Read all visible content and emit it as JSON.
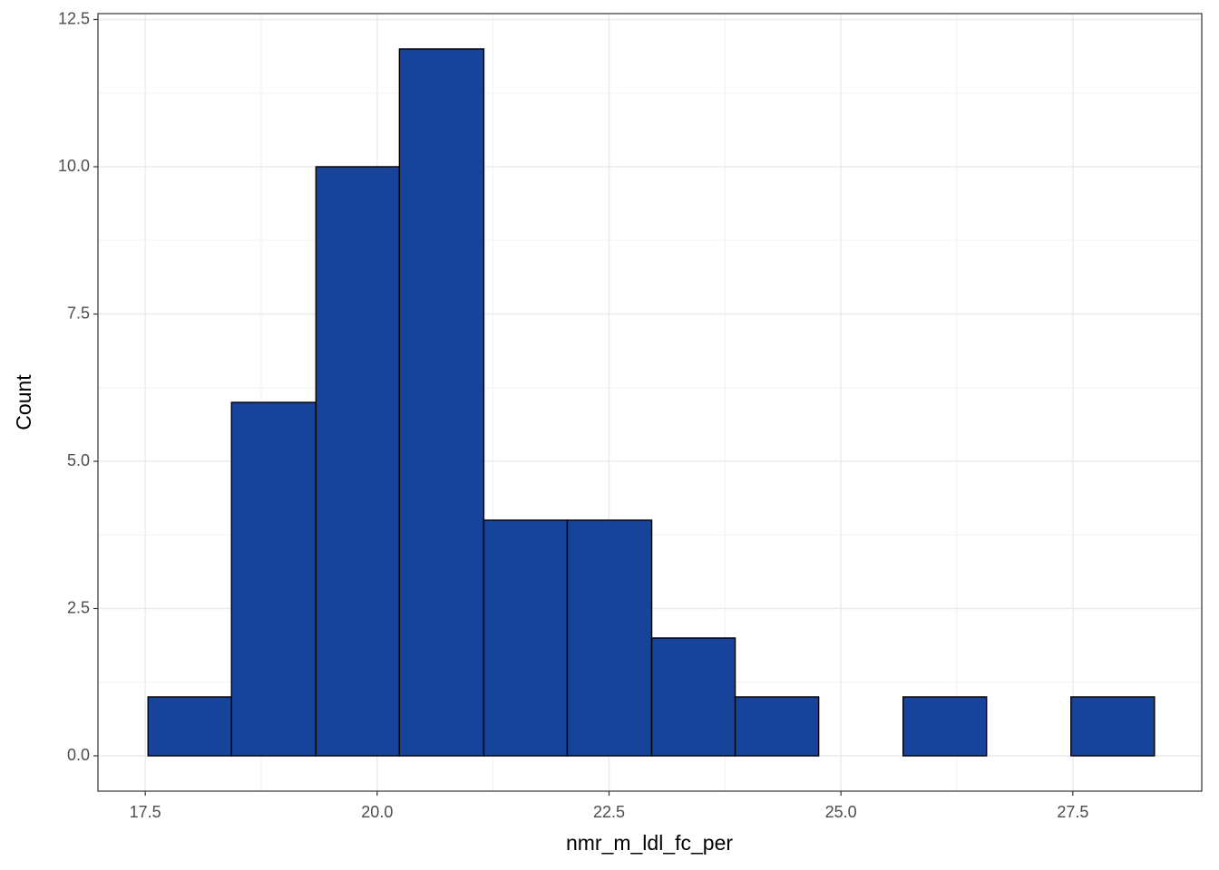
{
  "chart_data": {
    "type": "histogram",
    "x_label": "nmr_m_ldl_fc_per",
    "y_label": "Count",
    "bins": [
      17.53,
      18.43,
      19.34,
      20.24,
      21.15,
      22.05,
      22.96,
      23.86,
      24.76,
      25.67,
      26.57,
      27.48,
      28.38
    ],
    "values": [
      1,
      6,
      10,
      12,
      4,
      4,
      2,
      1,
      0,
      1,
      0,
      1
    ],
    "color": "#17449a",
    "edge_color": "#000000",
    "xlim": [
      16.99,
      28.89
    ],
    "xticks": [
      17.5,
      {
        "value": 20,
        "label": "20.0"
      },
      22.5,
      {
        "value": 25,
        "label": "25.0"
      },
      27.5
    ],
    "ylim": [
      -0.6,
      12.6
    ],
    "yticks": [
      {
        "value": 0,
        "label": "0.0"
      },
      2.5,
      {
        "value": 5,
        "label": "5.0"
      },
      7.5,
      {
        "value": 10,
        "label": "10.0"
      },
      12.5
    ],
    "grid": true
  }
}
